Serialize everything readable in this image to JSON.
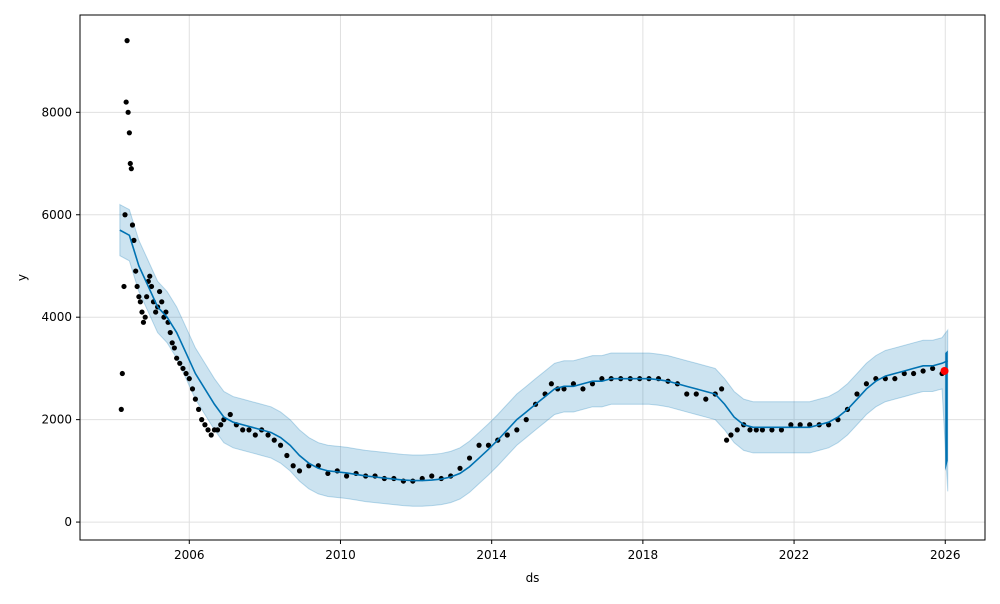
{
  "chart_data": {
    "type": "line",
    "title": "",
    "xlabel": "ds",
    "ylabel": "y",
    "xlim": [
      "2003-02-10",
      "2027-01-20"
    ],
    "ylim": [
      -350,
      9900
    ],
    "grid": true,
    "xticks": [
      "2006",
      "2010",
      "2014",
      "2018",
      "2022",
      "2026"
    ],
    "yticks": [
      0,
      2000,
      4000,
      6000,
      8000
    ],
    "colors": {
      "observed": "#000000",
      "forecast": "#0072b2",
      "uncertainty": "#0072b2",
      "highlight": "#ff0000",
      "grid": "#e0e0e0"
    },
    "series": [
      {
        "role": "observed",
        "marker": "point",
        "x": [
          "2004-03-15",
          "2004-03-25",
          "2004-04-10",
          "2004-04-20",
          "2004-05-01",
          "2004-05-10",
          "2004-05-20",
          "2004-06-01",
          "2004-06-10",
          "2004-06-20",
          "2004-07-01",
          "2004-07-15",
          "2004-08-01",
          "2004-08-15",
          "2004-09-01",
          "2004-09-15",
          "2004-10-01",
          "2004-10-15",
          "2004-11-01",
          "2004-11-15",
          "2004-12-01",
          "2004-12-15",
          "2005-01-01",
          "2005-01-20",
          "2005-02-10",
          "2005-03-01",
          "2005-03-20",
          "2005-04-10",
          "2005-05-01",
          "2005-05-20",
          "2005-06-10",
          "2005-07-01",
          "2005-07-20",
          "2005-08-10",
          "2005-09-01",
          "2005-10-01",
          "2005-11-01",
          "2005-12-01",
          "2006-01-01",
          "2006-02-01",
          "2006-03-01",
          "2006-04-01",
          "2006-05-01",
          "2006-06-01",
          "2006-07-01",
          "2006-08-01",
          "2006-09-01",
          "2006-10-01",
          "2006-11-01",
          "2006-12-01",
          "2007-02-01",
          "2007-04-01",
          "2007-06-01",
          "2007-08-01",
          "2007-10-01",
          "2007-12-01",
          "2008-02-01",
          "2008-04-01",
          "2008-06-01",
          "2008-08-01",
          "2008-10-01",
          "2008-12-01",
          "2009-03-01",
          "2009-06-01",
          "2009-09-01",
          "2009-12-01",
          "2010-03-01",
          "2010-06-01",
          "2010-09-01",
          "2010-12-01",
          "2011-03-01",
          "2011-06-01",
          "2011-09-01",
          "2011-12-01",
          "2012-03-01",
          "2012-06-01",
          "2012-09-01",
          "2012-12-01",
          "2013-03-01",
          "2013-06-01",
          "2013-09-01",
          "2013-12-01",
          "2014-03-01",
          "2014-06-01",
          "2014-09-01",
          "2014-12-01",
          "2015-03-01",
          "2015-06-01",
          "2015-08-01",
          "2015-10-01",
          "2015-12-01",
          "2016-03-01",
          "2016-06-01",
          "2016-09-01",
          "2016-12-01",
          "2017-03-01",
          "2017-06-01",
          "2017-09-01",
          "2017-12-01",
          "2018-03-01",
          "2018-06-01",
          "2018-09-01",
          "2018-12-01",
          "2019-03-01",
          "2019-06-01",
          "2019-09-01",
          "2019-12-01",
          "2020-02-01",
          "2020-03-20",
          "2020-05-01",
          "2020-07-01",
          "2020-09-01",
          "2020-11-01",
          "2021-01-01",
          "2021-03-01",
          "2021-06-01",
          "2021-09-01",
          "2021-12-01",
          "2022-03-01",
          "2022-06-01",
          "2022-09-01",
          "2022-12-01",
          "2023-03-01",
          "2023-06-01",
          "2023-09-01",
          "2023-12-01",
          "2024-03-01",
          "2024-06-01",
          "2024-09-01",
          "2024-12-01",
          "2025-03-01",
          "2025-06-01",
          "2025-09-01",
          "2025-12-01"
        ],
        "y": [
          2200,
          2900,
          4600,
          6000,
          8200,
          9400,
          8000,
          7600,
          7000,
          6900,
          5800,
          5500,
          4900,
          4600,
          4400,
          4300,
          4100,
          3900,
          4000,
          4400,
          4700,
          4800,
          4600,
          4300,
          4100,
          4200,
          4500,
          4300,
          4000,
          4100,
          3900,
          3700,
          3500,
          3400,
          3200,
          3100,
          3000,
          2900,
          2800,
          2600,
          2400,
          2200,
          2000,
          1900,
          1800,
          1700,
          1800,
          1800,
          1900,
          2000,
          2100,
          1900,
          1800,
          1800,
          1700,
          1800,
          1700,
          1600,
          1500,
          1300,
          1100,
          1000,
          1100,
          1100,
          950,
          1000,
          900,
          950,
          900,
          900,
          850,
          850,
          800,
          800,
          850,
          900,
          850,
          900,
          1050,
          1250,
          1500,
          1500,
          1600,
          1700,
          1800,
          2000,
          2300,
          2500,
          2700,
          2600,
          2600,
          2700,
          2600,
          2700,
          2800,
          2800,
          2800,
          2800,
          2800,
          2800,
          2800,
          2750,
          2700,
          2500,
          2500,
          2400,
          2500,
          2600,
          1600,
          1700,
          1800,
          1900,
          1800,
          1800,
          1800,
          1800,
          1800,
          1900,
          1900,
          1900,
          1900,
          1900,
          2000,
          2200,
          2500,
          2700,
          2800,
          2800,
          2800,
          2900,
          2900,
          2950,
          3000,
          2900
        ]
      },
      {
        "role": "forecast",
        "marker": "line",
        "x": [
          "2004-03-01",
          "2004-06-01",
          "2004-09-01",
          "2004-12-01",
          "2005-03-01",
          "2005-06-01",
          "2005-09-01",
          "2005-12-01",
          "2006-03-01",
          "2006-06-01",
          "2006-09-01",
          "2006-12-01",
          "2007-03-01",
          "2007-06-01",
          "2007-09-01",
          "2007-12-01",
          "2008-03-01",
          "2008-06-01",
          "2008-09-01",
          "2008-12-01",
          "2009-03-01",
          "2009-06-01",
          "2009-09-01",
          "2009-12-01",
          "2010-03-01",
          "2010-06-01",
          "2010-09-01",
          "2010-12-01",
          "2011-03-01",
          "2011-06-01",
          "2011-09-01",
          "2011-12-01",
          "2012-03-01",
          "2012-06-01",
          "2012-09-01",
          "2012-12-01",
          "2013-03-01",
          "2013-06-01",
          "2013-09-01",
          "2013-12-01",
          "2014-03-01",
          "2014-06-01",
          "2014-09-01",
          "2014-12-01",
          "2015-03-01",
          "2015-06-01",
          "2015-09-01",
          "2015-12-01",
          "2016-03-01",
          "2016-06-01",
          "2016-09-01",
          "2016-12-01",
          "2017-03-01",
          "2017-06-01",
          "2017-09-01",
          "2017-12-01",
          "2018-03-01",
          "2018-06-01",
          "2018-09-01",
          "2018-12-01",
          "2019-03-01",
          "2019-06-01",
          "2019-09-01",
          "2019-12-01",
          "2020-03-01",
          "2020-06-01",
          "2020-09-01",
          "2020-12-01",
          "2021-03-01",
          "2021-06-01",
          "2021-09-01",
          "2021-12-01",
          "2022-03-01",
          "2022-06-01",
          "2022-09-01",
          "2022-12-01",
          "2023-03-01",
          "2023-06-01",
          "2023-09-01",
          "2023-12-01",
          "2024-03-01",
          "2024-06-01",
          "2024-09-01",
          "2024-12-01",
          "2025-03-01",
          "2025-06-01",
          "2025-09-01",
          "2025-12-01",
          "2026-01-25"
        ],
        "y": [
          5700,
          5600,
          5000,
          4600,
          4200,
          4000,
          3700,
          3300,
          2900,
          2600,
          2300,
          2050,
          1950,
          1900,
          1850,
          1800,
          1750,
          1650,
          1500,
          1300,
          1150,
          1050,
          1000,
          980,
          960,
          930,
          900,
          880,
          860,
          840,
          820,
          810,
          810,
          820,
          840,
          880,
          950,
          1080,
          1250,
          1420,
          1600,
          1800,
          2000,
          2150,
          2300,
          2450,
          2600,
          2650,
          2650,
          2700,
          2750,
          2750,
          2800,
          2800,
          2800,
          2800,
          2800,
          2780,
          2750,
          2700,
          2650,
          2600,
          2550,
          2500,
          2300,
          2050,
          1900,
          1850,
          1850,
          1850,
          1850,
          1850,
          1850,
          1850,
          1900,
          1950,
          2050,
          2200,
          2400,
          2600,
          2750,
          2850,
          2900,
          2950,
          3000,
          3050,
          3050,
          3100,
          3150
        ]
      },
      {
        "role": "uncertainty",
        "x": [
          "2004-03-01",
          "2004-06-01",
          "2004-09-01",
          "2004-12-01",
          "2005-03-01",
          "2005-06-01",
          "2005-09-01",
          "2005-12-01",
          "2006-03-01",
          "2006-06-01",
          "2006-09-01",
          "2006-12-01",
          "2007-03-01",
          "2007-06-01",
          "2007-09-01",
          "2007-12-01",
          "2008-03-01",
          "2008-06-01",
          "2008-09-01",
          "2008-12-01",
          "2009-03-01",
          "2009-06-01",
          "2009-09-01",
          "2009-12-01",
          "2010-03-01",
          "2010-06-01",
          "2010-09-01",
          "2010-12-01",
          "2011-03-01",
          "2011-06-01",
          "2011-09-01",
          "2011-12-01",
          "2012-03-01",
          "2012-06-01",
          "2012-09-01",
          "2012-12-01",
          "2013-03-01",
          "2013-06-01",
          "2013-09-01",
          "2013-12-01",
          "2014-03-01",
          "2014-06-01",
          "2014-09-01",
          "2014-12-01",
          "2015-03-01",
          "2015-06-01",
          "2015-09-01",
          "2015-12-01",
          "2016-03-01",
          "2016-06-01",
          "2016-09-01",
          "2016-12-01",
          "2017-03-01",
          "2017-06-01",
          "2017-09-01",
          "2017-12-01",
          "2018-03-01",
          "2018-06-01",
          "2018-09-01",
          "2018-12-01",
          "2019-03-01",
          "2019-06-01",
          "2019-09-01",
          "2019-12-01",
          "2020-03-01",
          "2020-06-01",
          "2020-09-01",
          "2020-12-01",
          "2021-03-01",
          "2021-06-01",
          "2021-09-01",
          "2021-12-01",
          "2022-03-01",
          "2022-06-01",
          "2022-09-01",
          "2022-12-01",
          "2023-03-01",
          "2023-06-01",
          "2023-09-01",
          "2023-12-01",
          "2024-03-01",
          "2024-06-01",
          "2024-09-01",
          "2024-12-01",
          "2025-03-01",
          "2025-06-01",
          "2025-09-01",
          "2025-12-01",
          "2026-01-25"
        ],
        "lower": [
          5200,
          5100,
          4500,
          4100,
          3700,
          3500,
          3200,
          2800,
          2400,
          2100,
          1800,
          1550,
          1450,
          1400,
          1350,
          1300,
          1250,
          1150,
          1000,
          800,
          650,
          550,
          500,
          480,
          460,
          430,
          400,
          380,
          360,
          340,
          320,
          310,
          310,
          320,
          340,
          380,
          450,
          580,
          750,
          920,
          1100,
          1300,
          1500,
          1650,
          1800,
          1950,
          2100,
          2150,
          2150,
          2200,
          2250,
          2250,
          2300,
          2300,
          2300,
          2300,
          2300,
          2280,
          2250,
          2200,
          2150,
          2100,
          2050,
          2000,
          1800,
          1550,
          1400,
          1350,
          1350,
          1350,
          1350,
          1350,
          1350,
          1350,
          1400,
          1450,
          1550,
          1700,
          1900,
          2100,
          2250,
          2350,
          2400,
          2450,
          2500,
          2550,
          2550,
          2600,
          600
        ],
        "upper": [
          6200,
          6100,
          5500,
          5100,
          4700,
          4500,
          4200,
          3800,
          3400,
          3100,
          2800,
          2550,
          2450,
          2400,
          2350,
          2300,
          2250,
          2150,
          2000,
          1800,
          1650,
          1550,
          1500,
          1480,
          1460,
          1430,
          1400,
          1380,
          1360,
          1340,
          1320,
          1310,
          1310,
          1320,
          1340,
          1380,
          1450,
          1580,
          1750,
          1920,
          2100,
          2300,
          2500,
          2650,
          2800,
          2950,
          3100,
          3150,
          3150,
          3200,
          3250,
          3250,
          3300,
          3300,
          3300,
          3300,
          3300,
          3280,
          3250,
          3200,
          3150,
          3100,
          3050,
          3000,
          2800,
          2550,
          2400,
          2350,
          2350,
          2350,
          2350,
          2350,
          2350,
          2350,
          2400,
          2450,
          2550,
          2700,
          2900,
          3100,
          3250,
          3350,
          3400,
          3450,
          3500,
          3550,
          3550,
          3600,
          3750
        ]
      },
      {
        "role": "forecast-range",
        "x": [
          "2026-01-01",
          "2026-01-25"
        ],
        "lower": [
          1000,
          1200
        ],
        "upper": [
          3300,
          3350
        ]
      },
      {
        "role": "highlight",
        "marker": "point",
        "x": [
          "2025-12-25"
        ],
        "y": [
          2950
        ]
      }
    ]
  }
}
